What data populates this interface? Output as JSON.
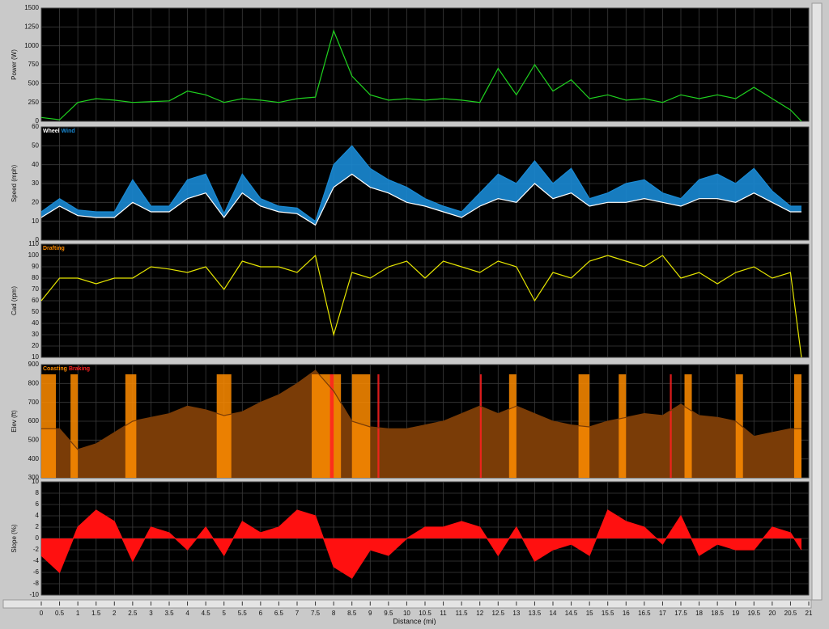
{
  "chart_data": [
    {
      "type": "line",
      "ylabel": "Power (W)",
      "x": [
        0,
        0.5,
        1,
        1.5,
        2,
        2.5,
        3,
        3.5,
        4,
        4.5,
        5,
        5.5,
        6,
        6.5,
        7,
        7.5,
        8,
        8.5,
        9,
        9.5,
        10,
        10.5,
        11,
        11.5,
        12,
        12.5,
        13,
        13.5,
        14,
        14.5,
        15,
        15.5,
        16,
        16.5,
        17,
        17.5,
        18,
        18.5,
        19,
        19.5,
        20,
        20.5,
        20.8
      ],
      "series": [
        {
          "color": "#1fd21f",
          "values": [
            50,
            20,
            250,
            300,
            280,
            250,
            260,
            270,
            400,
            350,
            250,
            300,
            280,
            250,
            300,
            320,
            1200,
            600,
            350,
            280,
            300,
            280,
            300,
            280,
            250,
            700,
            350,
            750,
            400,
            550,
            300,
            350,
            280,
            300,
            250,
            350,
            300,
            350,
            300,
            450,
            300,
            150,
            0
          ]
        }
      ],
      "xlim": [
        0,
        21
      ],
      "ylim": [
        0,
        1500
      ],
      "yticks": [
        0,
        250,
        500,
        750,
        1000,
        1250,
        1500
      ]
    },
    {
      "type": "band",
      "ylabel": "Speed (mph)",
      "x": [
        0,
        0.5,
        1,
        1.5,
        2,
        2.5,
        3,
        3.5,
        4,
        4.5,
        5,
        5.5,
        6,
        6.5,
        7,
        7.5,
        8,
        8.5,
        9,
        9.5,
        10,
        10.5,
        11,
        11.5,
        12,
        12.5,
        13,
        13.5,
        14,
        14.5,
        15,
        15.5,
        16,
        16.5,
        17,
        17.5,
        18,
        18.5,
        19,
        19.5,
        20,
        20.5,
        20.8
      ],
      "series": [
        {
          "name": "Wheel",
          "color": "#ffffff",
          "values": [
            12,
            18,
            13,
            12,
            12,
            20,
            15,
            15,
            22,
            25,
            12,
            25,
            18,
            15,
            14,
            8,
            28,
            35,
            28,
            25,
            20,
            18,
            15,
            12,
            18,
            22,
            20,
            30,
            22,
            25,
            18,
            20,
            20,
            22,
            20,
            18,
            22,
            22,
            20,
            25,
            20,
            15,
            15
          ]
        },
        {
          "name": "Wind",
          "color": "#1a8ad4",
          "values": [
            15,
            22,
            16,
            15,
            15,
            32,
            18,
            18,
            32,
            35,
            14,
            35,
            22,
            18,
            17,
            10,
            40,
            50,
            38,
            32,
            28,
            22,
            18,
            15,
            25,
            35,
            30,
            42,
            30,
            38,
            22,
            25,
            30,
            32,
            25,
            22,
            32,
            35,
            30,
            38,
            26,
            18,
            18
          ]
        }
      ],
      "xlim": [
        0,
        21
      ],
      "ylim": [
        0,
        60
      ],
      "yticks": [
        0,
        10,
        20,
        30,
        40,
        50,
        60
      ]
    },
    {
      "type": "line",
      "ylabel": "Cad (rpm)",
      "x": [
        0,
        0.5,
        1,
        1.5,
        2,
        2.5,
        3,
        3.5,
        4,
        4.5,
        5,
        5.5,
        6,
        6.5,
        7,
        7.5,
        8,
        8.5,
        9,
        9.5,
        10,
        10.5,
        11,
        11.5,
        12,
        12.5,
        13,
        13.5,
        14,
        14.5,
        15,
        15.5,
        16,
        16.5,
        17,
        17.5,
        18,
        18.5,
        19,
        19.5,
        20,
        20.5,
        20.8
      ],
      "series": [
        {
          "color": "#e6e600",
          "values": [
            60,
            80,
            80,
            75,
            80,
            80,
            90,
            88,
            85,
            90,
            70,
            95,
            90,
            90,
            85,
            100,
            30,
            85,
            80,
            90,
            95,
            80,
            95,
            90,
            85,
            95,
            90,
            60,
            85,
            80,
            95,
            100,
            95,
            90,
            100,
            80,
            85,
            75,
            85,
            90,
            80,
            85,
            10
          ]
        }
      ],
      "legend": [
        {
          "name": "Drafting",
          "color": "#ff8c00"
        }
      ],
      "xlim": [
        0,
        21
      ],
      "ylim": [
        10,
        110
      ],
      "yticks": [
        10,
        20,
        30,
        40,
        50,
        60,
        70,
        80,
        90,
        100,
        110
      ]
    },
    {
      "type": "area",
      "ylabel": "Elev (ft)",
      "x": [
        0,
        0.5,
        1,
        1.5,
        2,
        2.5,
        3,
        3.5,
        4,
        4.5,
        5,
        5.5,
        6,
        6.5,
        7,
        7.5,
        8,
        8.5,
        9,
        9.5,
        10,
        10.5,
        11,
        11.5,
        12,
        12.5,
        13,
        13.5,
        14,
        14.5,
        15,
        15.5,
        16,
        16.5,
        17,
        17.5,
        18,
        18.5,
        19,
        19.5,
        20,
        20.5,
        20.8
      ],
      "series": [
        {
          "color": "#7a3c07",
          "values": [
            560,
            560,
            450,
            480,
            540,
            600,
            620,
            640,
            680,
            660,
            630,
            650,
            700,
            740,
            800,
            870,
            760,
            600,
            570,
            560,
            560,
            580,
            600,
            640,
            680,
            640,
            680,
            640,
            600,
            580,
            570,
            600,
            620,
            640,
            630,
            690,
            630,
            620,
            600,
            520,
            540,
            560,
            560
          ]
        }
      ],
      "legend": [
        {
          "name": "Coasting",
          "color": "#ff8c00"
        },
        {
          "name": "Braking",
          "color": "#ff2020"
        }
      ],
      "spans": [
        [
          [
            0,
            0.4
          ],
          [
            0.8,
            1.0
          ],
          [
            2.3,
            2.6
          ],
          [
            4.8,
            5.2
          ],
          [
            7.4,
            8.2
          ],
          [
            8.5,
            9.0
          ],
          [
            12.8,
            13.0
          ],
          [
            14.7,
            15.0
          ],
          [
            15.8,
            16.0
          ],
          [
            17.6,
            17.8
          ],
          [
            19.0,
            19.2
          ],
          [
            20.6,
            20.8
          ]
        ],
        [
          [
            7.9,
            8.0
          ],
          [
            9.2,
            9.25
          ],
          [
            12.0,
            12.05
          ],
          [
            17.2,
            17.25
          ]
        ]
      ],
      "xlim": [
        0,
        21
      ],
      "ylim": [
        300,
        900
      ],
      "yticks": [
        300,
        400,
        500,
        600,
        700,
        800,
        900
      ]
    },
    {
      "type": "area",
      "ylabel": "Slope (%)",
      "xlabel": "Distance (mi)",
      "x": [
        0,
        0.5,
        1,
        1.5,
        2,
        2.5,
        3,
        3.5,
        4,
        4.5,
        5,
        5.5,
        6,
        6.5,
        7,
        7.5,
        8,
        8.5,
        9,
        9.5,
        10,
        10.5,
        11,
        11.5,
        12,
        12.5,
        13,
        13.5,
        14,
        14.5,
        15,
        15.5,
        16,
        16.5,
        17,
        17.5,
        18,
        18.5,
        19,
        19.5,
        20,
        20.5,
        20.8
      ],
      "series": [
        {
          "color": "#ff1010",
          "values": [
            -3,
            -6,
            2,
            5,
            3,
            -4,
            2,
            1,
            -2,
            2,
            -3,
            3,
            1,
            2,
            5,
            4,
            -5,
            -7,
            -2,
            -3,
            0,
            2,
            2,
            3,
            2,
            -3,
            2,
            -4,
            -2,
            -1,
            -3,
            5,
            3,
            2,
            -1,
            4,
            -3,
            -1,
            -2,
            -2,
            2,
            1,
            -2
          ]
        }
      ],
      "xlim": [
        0,
        21
      ],
      "ylim": [
        -10,
        10
      ],
      "yticks": [
        -10,
        -8,
        -6,
        -4,
        -2,
        0,
        2,
        4,
        6,
        8,
        10
      ],
      "xticks": [
        0,
        0.5,
        1,
        1.5,
        2,
        2.5,
        3,
        3.5,
        4,
        4.5,
        5,
        5.5,
        6,
        6.5,
        7,
        7.5,
        8,
        8.5,
        9,
        9.5,
        10,
        10.5,
        11,
        11.5,
        12,
        12.5,
        13,
        13.5,
        14,
        14.5,
        15,
        15.5,
        16,
        16.5,
        17,
        17.5,
        18,
        18.5,
        19,
        19.5,
        20,
        20.5,
        21
      ]
    }
  ]
}
